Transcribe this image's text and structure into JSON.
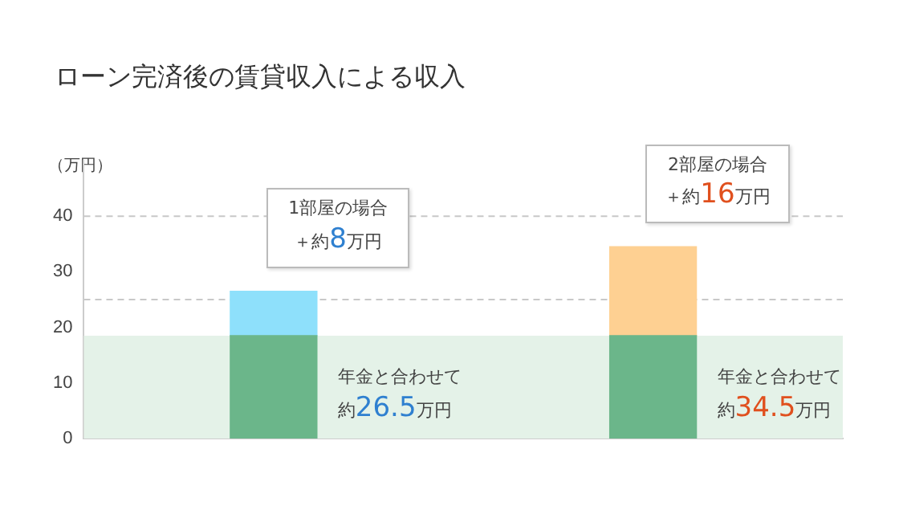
{
  "chart_data": {
    "type": "bar",
    "title": "ローン完済後の賃貸収入による収入",
    "ylabel": "（万円）",
    "categories": [
      null,
      null
    ],
    "stacked": true,
    "series": [
      {
        "color": "#6bb68a",
        "values": [
          18.5,
          18.5
        ]
      },
      {
        "color": "#8ee0fb",
        "values": [
          8,
          null
        ]
      },
      {
        "color": "#fed092",
        "values": [
          null,
          16
        ]
      }
    ],
    "ylim": [
      0,
      50
    ],
    "yticks": [
      0,
      10,
      20,
      30,
      40
    ],
    "grid": false,
    "legend": false,
    "ref_lines": [
      {
        "axis": "y",
        "value": 25,
        "line_style": "dashed",
        "color": "#c8c8c8"
      },
      {
        "axis": "y",
        "value": 40,
        "line_style": "dashed",
        "color": "#c8c8c8"
      }
    ],
    "bands": [
      {
        "axis": "y",
        "from": 0,
        "to": 18.5,
        "color": "#e4f2e8"
      }
    ],
    "annotations": [
      "1部屋の場合＋約8万円",
      "2部屋の場合＋約16万円",
      "年金と合わせて約26.5万円",
      "年金と合わせて約34.5万円"
    ]
  }
}
